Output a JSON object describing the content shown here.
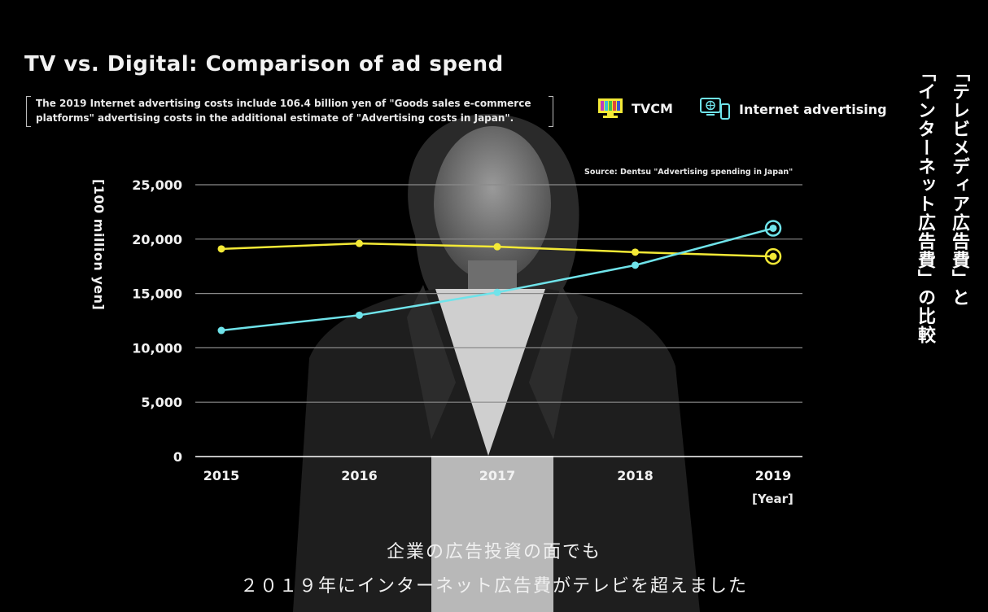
{
  "chart_data": {
    "type": "line",
    "title": "TV vs. Digital: Comparison of ad spend",
    "note_line1": "The 2019 Internet advertising costs include 106.4 billion yen of \"Goods sales e-commerce",
    "note_line2": "platforms\" advertising costs in the additional estimate of \"Advertising costs in Japan\".",
    "source": "Source: Dentsu \"Advertising spending in Japan\"",
    "ylabel": "[100 million yen]",
    "xunit": "[Year]",
    "x": [
      "2015",
      "2016",
      "2017",
      "2018",
      "2019"
    ],
    "yticks": [
      "0",
      "5,000",
      "10,000",
      "15,000",
      "20,000",
      "25,000"
    ],
    "ylim": [
      0,
      25000
    ],
    "grid": true,
    "legend_position": "top-right",
    "series": [
      {
        "name": "TVCM",
        "color": "#f3e936",
        "icon": "tv-icon",
        "values": [
          19100,
          19600,
          19300,
          18800,
          18400
        ]
      },
      {
        "name": "Internet advertising",
        "color": "#6fe3ea",
        "icon": "devices-icon",
        "values": [
          11600,
          13000,
          15100,
          17600,
          21000
        ]
      }
    ]
  },
  "side_title_col1": "「テレビメディア広告費」と",
  "side_title_col2": "「インターネット広告費」の比較",
  "subtitle_line1": "企業の広告投資の面でも",
  "subtitle_line2": "２０１９年にインターネット広告費がテレビを超えました"
}
